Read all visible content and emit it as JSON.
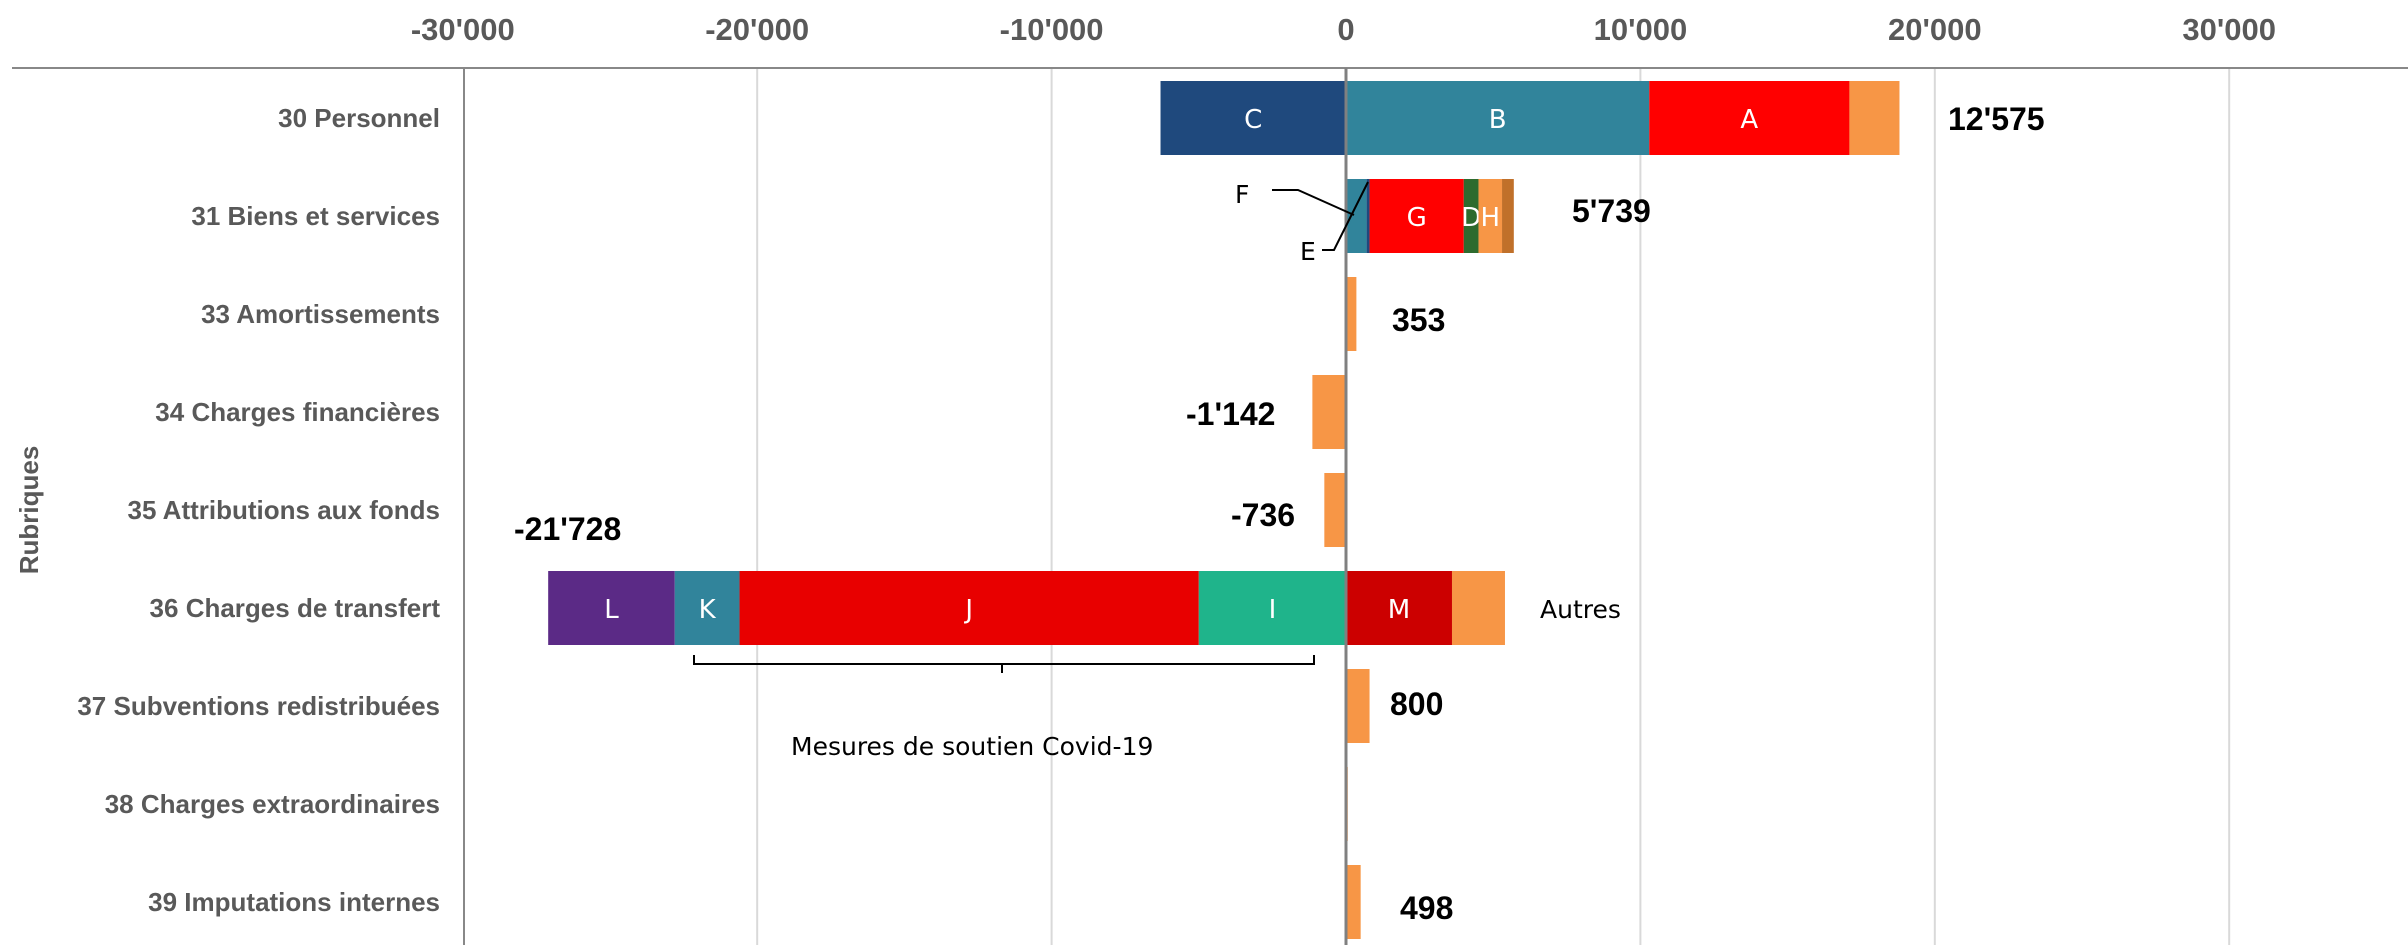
{
  "chart_data": {
    "type": "bar",
    "orientation": "horizontal",
    "stacked": true,
    "ylabel": "Rubriques",
    "xlim": [
      -30000,
      30000
    ],
    "xticks": [
      -30000,
      -20000,
      -10000,
      0,
      10000,
      20000,
      30000
    ],
    "xtick_labels": [
      "-30'000",
      "-20'000",
      "-10'000",
      "0",
      "10'000",
      "20'000",
      "30'000"
    ],
    "grid": true,
    "categories": [
      "30 Personnel",
      "31 Biens et services",
      "33 Amortissements",
      "34 Charges financières",
      "35 Attributions aux fonds",
      "36 Charges de transfert",
      "37 Subventions redistribuées",
      "38 Charges extraordinaires",
      "39 Imputations internes"
    ],
    "totals": [
      "12'575",
      "5'739",
      "353",
      "-1'142",
      "-736",
      "-21'728",
      "800",
      "",
      "498"
    ],
    "segments": [
      {
        "category": 0,
        "label": "C",
        "start": -6300,
        "end": 0,
        "color": "#1f497d"
      },
      {
        "category": 0,
        "label": "B",
        "start": 0,
        "end": 10300,
        "color": "#31849b"
      },
      {
        "category": 0,
        "label": "A",
        "start": 10300,
        "end": 17100,
        "color": "#ff0000"
      },
      {
        "category": 0,
        "label": "",
        "start": 17100,
        "end": 18800,
        "color": "#f79646"
      },
      {
        "category": 1,
        "label": "",
        "start": 0,
        "end": 700,
        "color": "#31849b"
      },
      {
        "category": 1,
        "label": "",
        "start": 700,
        "end": 800,
        "color": "#1f497d"
      },
      {
        "category": 1,
        "label": "G",
        "start": 800,
        "end": 4000,
        "color": "#ff0000"
      },
      {
        "category": 1,
        "label": "D",
        "start": 4000,
        "end": 4500,
        "color": "#2e6b2e"
      },
      {
        "category": 1,
        "label": "H",
        "start": 4500,
        "end": 5300,
        "color": "#f79646"
      },
      {
        "category": 1,
        "label": "",
        "start": 5300,
        "end": 5700,
        "color": "#c0702a"
      },
      {
        "category": 2,
        "label": "",
        "start": 0,
        "end": 353,
        "color": "#f79646"
      },
      {
        "category": 3,
        "label": "",
        "start": -1142,
        "end": 0,
        "color": "#f79646"
      },
      {
        "category": 4,
        "label": "",
        "start": -736,
        "end": 0,
        "color": "#f79646"
      },
      {
        "category": 5,
        "label": "L",
        "start": -27100,
        "end": -22800,
        "color": "#5b2a86"
      },
      {
        "category": 5,
        "label": "K",
        "start": -22800,
        "end": -20600,
        "color": "#31849b"
      },
      {
        "category": 5,
        "label": "J",
        "start": -20600,
        "end": -5000,
        "color": "#e80000"
      },
      {
        "category": 5,
        "label": "I",
        "start": -5000,
        "end": 0,
        "color": "#1fb48b"
      },
      {
        "category": 5,
        "label": "M",
        "start": 0,
        "end": 3600,
        "color": "#cc0000"
      },
      {
        "category": 5,
        "label": "",
        "start": 3600,
        "end": 5400,
        "color": "#f79646"
      },
      {
        "category": 6,
        "label": "",
        "start": 0,
        "end": 800,
        "color": "#f79646"
      },
      {
        "category": 7,
        "label": "",
        "start": 0,
        "end": 60,
        "color": "#f79646"
      },
      {
        "category": 8,
        "label": "",
        "start": 0,
        "end": 498,
        "color": "#f79646"
      }
    ],
    "annotations": {
      "autres": "Autres",
      "covid": "Mesures de soutien Covid-19",
      "f_label": "F",
      "e_label": "E"
    }
  }
}
